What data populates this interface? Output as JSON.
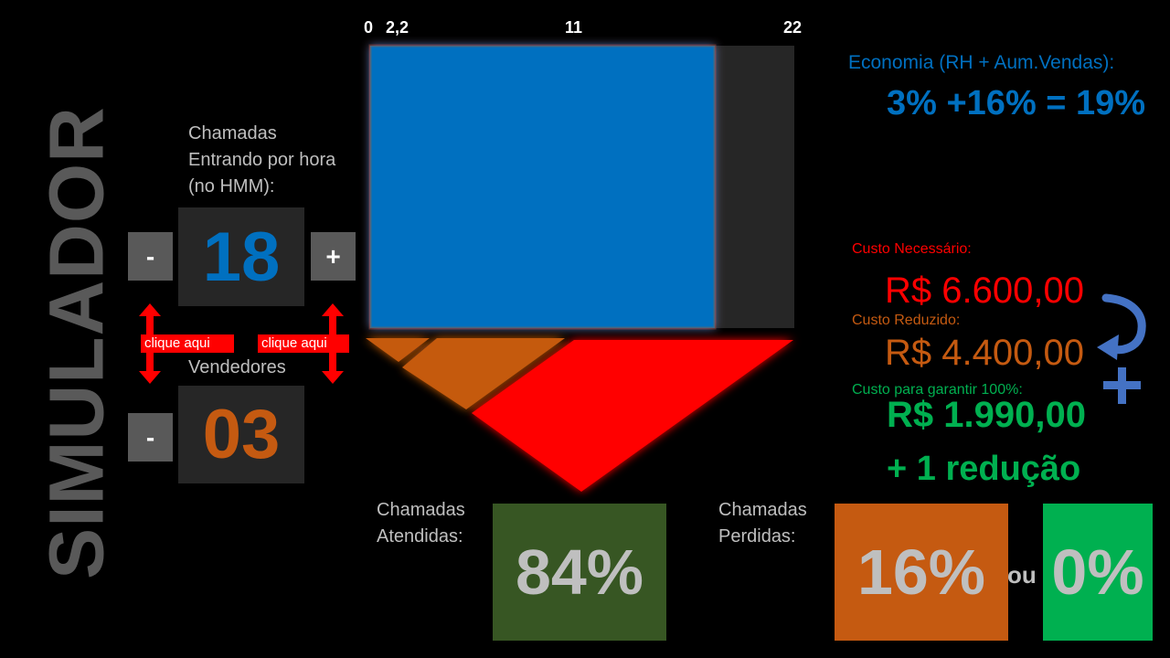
{
  "title": "SIMULADOR",
  "calls": {
    "label": "Chamadas Entrando por hora (no HMM):",
    "value": "18",
    "minus": "-",
    "plus": "+"
  },
  "sellers": {
    "label": "Vendedores",
    "value": "03",
    "minus": "-"
  },
  "hints": [
    "clique aqui",
    "clique aqui"
  ],
  "axis_ticks": [
    "0",
    "2,2",
    "11",
    "22"
  ],
  "economy": {
    "label": "Economia (RH + Aum.Vendas):",
    "value": "3% +16% = 19%"
  },
  "costs": {
    "required_label": "Custo Necessário:",
    "required_value": "R$ 6.600,00",
    "reduced_label": "Custo Reduzido:",
    "reduced_value": "R$ 4.400,00",
    "guarantee_label": "Custo para garantir 100%:",
    "guarantee_value": "R$ 1.990,00",
    "guarantee_extra": "+ 1 redução"
  },
  "answered": {
    "label": "Chamadas Atendidas:",
    "value": "84%"
  },
  "lost": {
    "label": "Chamadas Perdidas:",
    "value": "16%",
    "or": "ou",
    "alt_value": "0%"
  },
  "colors": {
    "blue": "#0070c0",
    "orange": "#c55a11",
    "red": "#ff0000",
    "green": "#00b050",
    "dark_green": "#375623",
    "panel": "#262626",
    "button": "#595959"
  }
}
